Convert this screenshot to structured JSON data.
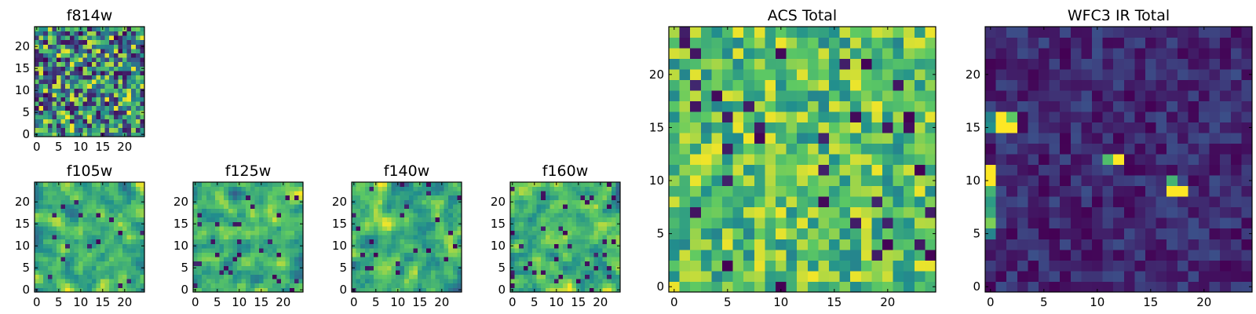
{
  "figure": {
    "colormap": "viridis",
    "colormap_stops": [
      "#440154",
      "#3b528b",
      "#21908d",
      "#5dc963",
      "#fde725"
    ]
  },
  "chart_data": [
    {
      "type": "heatmap",
      "id": "f814w",
      "title": "f814w",
      "grid_size": 25,
      "xlim": [
        0,
        24
      ],
      "ylim": [
        0,
        24
      ],
      "xticks": [
        0,
        5,
        10,
        15,
        20
      ],
      "yticks": [
        0,
        5,
        10,
        15,
        20
      ],
      "xtick_labels": [
        "0",
        "5",
        "10",
        "15",
        "20"
      ],
      "ytick_labels": [
        "0",
        "5",
        "10",
        "15",
        "20"
      ],
      "pattern": "pixel-noise",
      "seed": 11,
      "color_range": [
        0.05,
        1.0
      ],
      "dark_fraction": 0.07,
      "hotspots": []
    },
    {
      "type": "heatmap",
      "id": "f105w",
      "title": "f105w",
      "grid_size": 25,
      "xlim": [
        0,
        24
      ],
      "ylim": [
        0,
        24
      ],
      "xticks": [
        0,
        5,
        10,
        15,
        20
      ],
      "yticks": [
        0,
        5,
        10,
        15,
        20
      ],
      "xtick_labels": [
        "0",
        "5",
        "10",
        "15",
        "20"
      ],
      "ytick_labels": [
        "0",
        "5",
        "10",
        "15",
        "20"
      ],
      "pattern": "smooth-noise",
      "seed": 23,
      "color_range": [
        0.35,
        1.0
      ],
      "dark_fraction": 0.03,
      "hotspots": []
    },
    {
      "type": "heatmap",
      "id": "f125w",
      "title": "f125w",
      "grid_size": 25,
      "xlim": [
        0,
        24
      ],
      "ylim": [
        0,
        24
      ],
      "xticks": [
        0,
        5,
        10,
        15,
        20
      ],
      "yticks": [
        0,
        5,
        10,
        15,
        20
      ],
      "xtick_labels": [
        "0",
        "5",
        "10",
        "15",
        "20"
      ],
      "ytick_labels": [
        "0",
        "5",
        "10",
        "15",
        "20"
      ],
      "pattern": "smooth-noise",
      "seed": 37,
      "color_range": [
        0.3,
        1.0
      ],
      "dark_fraction": 0.04,
      "hotspots": []
    },
    {
      "type": "heatmap",
      "id": "f140w",
      "title": "f140w",
      "grid_size": 25,
      "xlim": [
        0,
        24
      ],
      "ylim": [
        0,
        24
      ],
      "xticks": [
        0,
        5,
        10,
        15,
        20
      ],
      "yticks": [
        0,
        5,
        10,
        15,
        20
      ],
      "xtick_labels": [
        "0",
        "5",
        "10",
        "15",
        "20"
      ],
      "ytick_labels": [
        "0",
        "5",
        "10",
        "15",
        "20"
      ],
      "pattern": "smooth-noise",
      "seed": 41,
      "color_range": [
        0.3,
        1.0
      ],
      "dark_fraction": 0.05,
      "hotspots": []
    },
    {
      "type": "heatmap",
      "id": "f160w",
      "title": "f160w",
      "grid_size": 25,
      "xlim": [
        0,
        24
      ],
      "ylim": [
        0,
        24
      ],
      "xticks": [
        0,
        5,
        10,
        15,
        20
      ],
      "yticks": [
        0,
        5,
        10,
        15,
        20
      ],
      "xtick_labels": [
        "0",
        "5",
        "10",
        "15",
        "20"
      ],
      "ytick_labels": [
        "0",
        "5",
        "10",
        "15",
        "20"
      ],
      "pattern": "smooth-noise",
      "seed": 53,
      "color_range": [
        0.3,
        1.0
      ],
      "dark_fraction": 0.05,
      "hotspots": []
    },
    {
      "type": "heatmap",
      "id": "acs-total",
      "title": "ACS Total",
      "grid_size": 25,
      "xlim": [
        0,
        24
      ],
      "ylim": [
        0,
        24
      ],
      "xticks": [
        0,
        5,
        10,
        15,
        20
      ],
      "yticks": [
        0,
        5,
        10,
        15,
        20
      ],
      "xtick_labels": [
        "0",
        "5",
        "10",
        "15",
        "20"
      ],
      "ytick_labels": [
        "0",
        "5",
        "10",
        "15",
        "20"
      ],
      "pattern": "pixel-noise",
      "seed": 67,
      "color_range": [
        0.45,
        0.98
      ],
      "dark_fraction": 0.05,
      "hotspots": []
    },
    {
      "type": "heatmap",
      "id": "wfc3-ir-total",
      "title": "WFC3 IR Total",
      "grid_size": 25,
      "xlim": [
        0,
        24
      ],
      "ylim": [
        0,
        24
      ],
      "xticks": [
        0,
        5,
        10,
        15,
        20
      ],
      "yticks": [
        0,
        5,
        10,
        15,
        20
      ],
      "xtick_labels": [
        "0",
        "5",
        "10",
        "15",
        "20"
      ],
      "ytick_labels": [
        "0",
        "5",
        "10",
        "15",
        "20"
      ],
      "pattern": "pixel-noise",
      "seed": 79,
      "color_range": [
        0.0,
        0.24
      ],
      "dark_fraction": 0.0,
      "hotspots": [
        {
          "x": 1,
          "y": 16,
          "value": 1.0
        },
        {
          "x": 2,
          "y": 16,
          "value": 0.75
        },
        {
          "x": 1,
          "y": 15,
          "value": 1.0
        },
        {
          "x": 2,
          "y": 15,
          "value": 1.0
        },
        {
          "x": 0,
          "y": 16,
          "value": 0.45
        },
        {
          "x": 0,
          "y": 15,
          "value": 0.5
        },
        {
          "x": 11,
          "y": 12,
          "value": 0.7
        },
        {
          "x": 12,
          "y": 12,
          "value": 1.0
        },
        {
          "x": 17,
          "y": 10,
          "value": 0.65
        },
        {
          "x": 17,
          "y": 9,
          "value": 1.0
        },
        {
          "x": 18,
          "y": 9,
          "value": 1.0
        },
        {
          "x": 0,
          "y": 11,
          "value": 1.0
        },
        {
          "x": 0,
          "y": 10,
          "value": 1.0
        },
        {
          "x": 0,
          "y": 9,
          "value": 0.65
        },
        {
          "x": 0,
          "y": 8,
          "value": 0.55
        },
        {
          "x": 0,
          "y": 7,
          "value": 0.6
        },
        {
          "x": 0,
          "y": 6,
          "value": 0.8
        },
        {
          "x": 0,
          "y": 5,
          "value": 0.45
        }
      ]
    }
  ]
}
